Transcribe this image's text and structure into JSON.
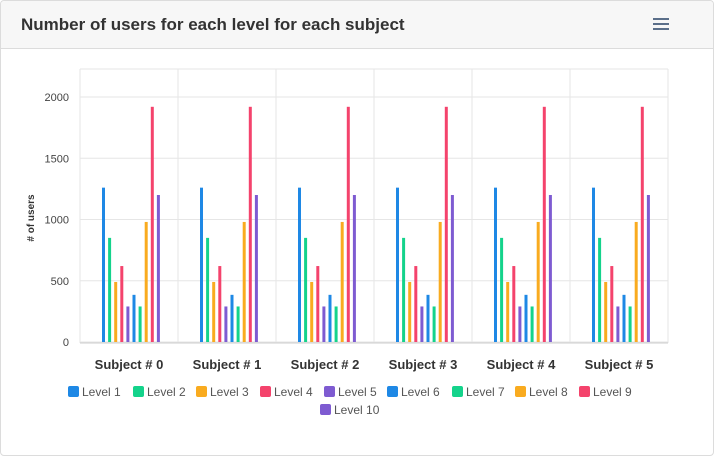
{
  "header": {
    "title": "Number of users for each level for each subject",
    "menu_icon": "hamburger-icon"
  },
  "chart_data": {
    "type": "bar",
    "title": "Number of users for each level for each subject",
    "xlabel": "",
    "ylabel": "# of users",
    "ylim": [
      0,
      2100
    ],
    "yticks": [
      0,
      500,
      1000,
      1500,
      2000
    ],
    "grid": true,
    "legend_position": "bottom",
    "categories": [
      "Subject # 0",
      "Subject # 1",
      "Subject # 2",
      "Subject # 3",
      "Subject # 4",
      "Subject # 5"
    ],
    "series": [
      {
        "name": "Level 1",
        "color": "#1e88e5",
        "values": [
          1260,
          1260,
          1260,
          1260,
          1260,
          1260
        ]
      },
      {
        "name": "Level 2",
        "color": "#14d38b",
        "values": [
          850,
          850,
          850,
          850,
          850,
          850
        ]
      },
      {
        "name": "Level 3",
        "color": "#f9ab1f",
        "values": [
          490,
          490,
          490,
          490,
          490,
          490
        ]
      },
      {
        "name": "Level 4",
        "color": "#f4436c",
        "values": [
          620,
          620,
          620,
          620,
          620,
          620
        ]
      },
      {
        "name": "Level 5",
        "color": "#7e5bd1",
        "values": [
          290,
          290,
          290,
          290,
          290,
          290
        ]
      },
      {
        "name": "Level 6",
        "color": "#1e88e5",
        "values": [
          385,
          385,
          385,
          385,
          385,
          385
        ]
      },
      {
        "name": "Level 7",
        "color": "#14d38b",
        "values": [
          290,
          290,
          290,
          290,
          290,
          290
        ]
      },
      {
        "name": "Level 8",
        "color": "#f9ab1f",
        "values": [
          980,
          980,
          980,
          980,
          980,
          980
        ]
      },
      {
        "name": "Level 9",
        "color": "#f4436c",
        "values": [
          1920,
          1920,
          1920,
          1920,
          1920,
          1920
        ]
      },
      {
        "name": "Level 10",
        "color": "#7e5bd1",
        "values": [
          1200,
          1200,
          1200,
          1200,
          1200,
          1200
        ]
      }
    ]
  }
}
